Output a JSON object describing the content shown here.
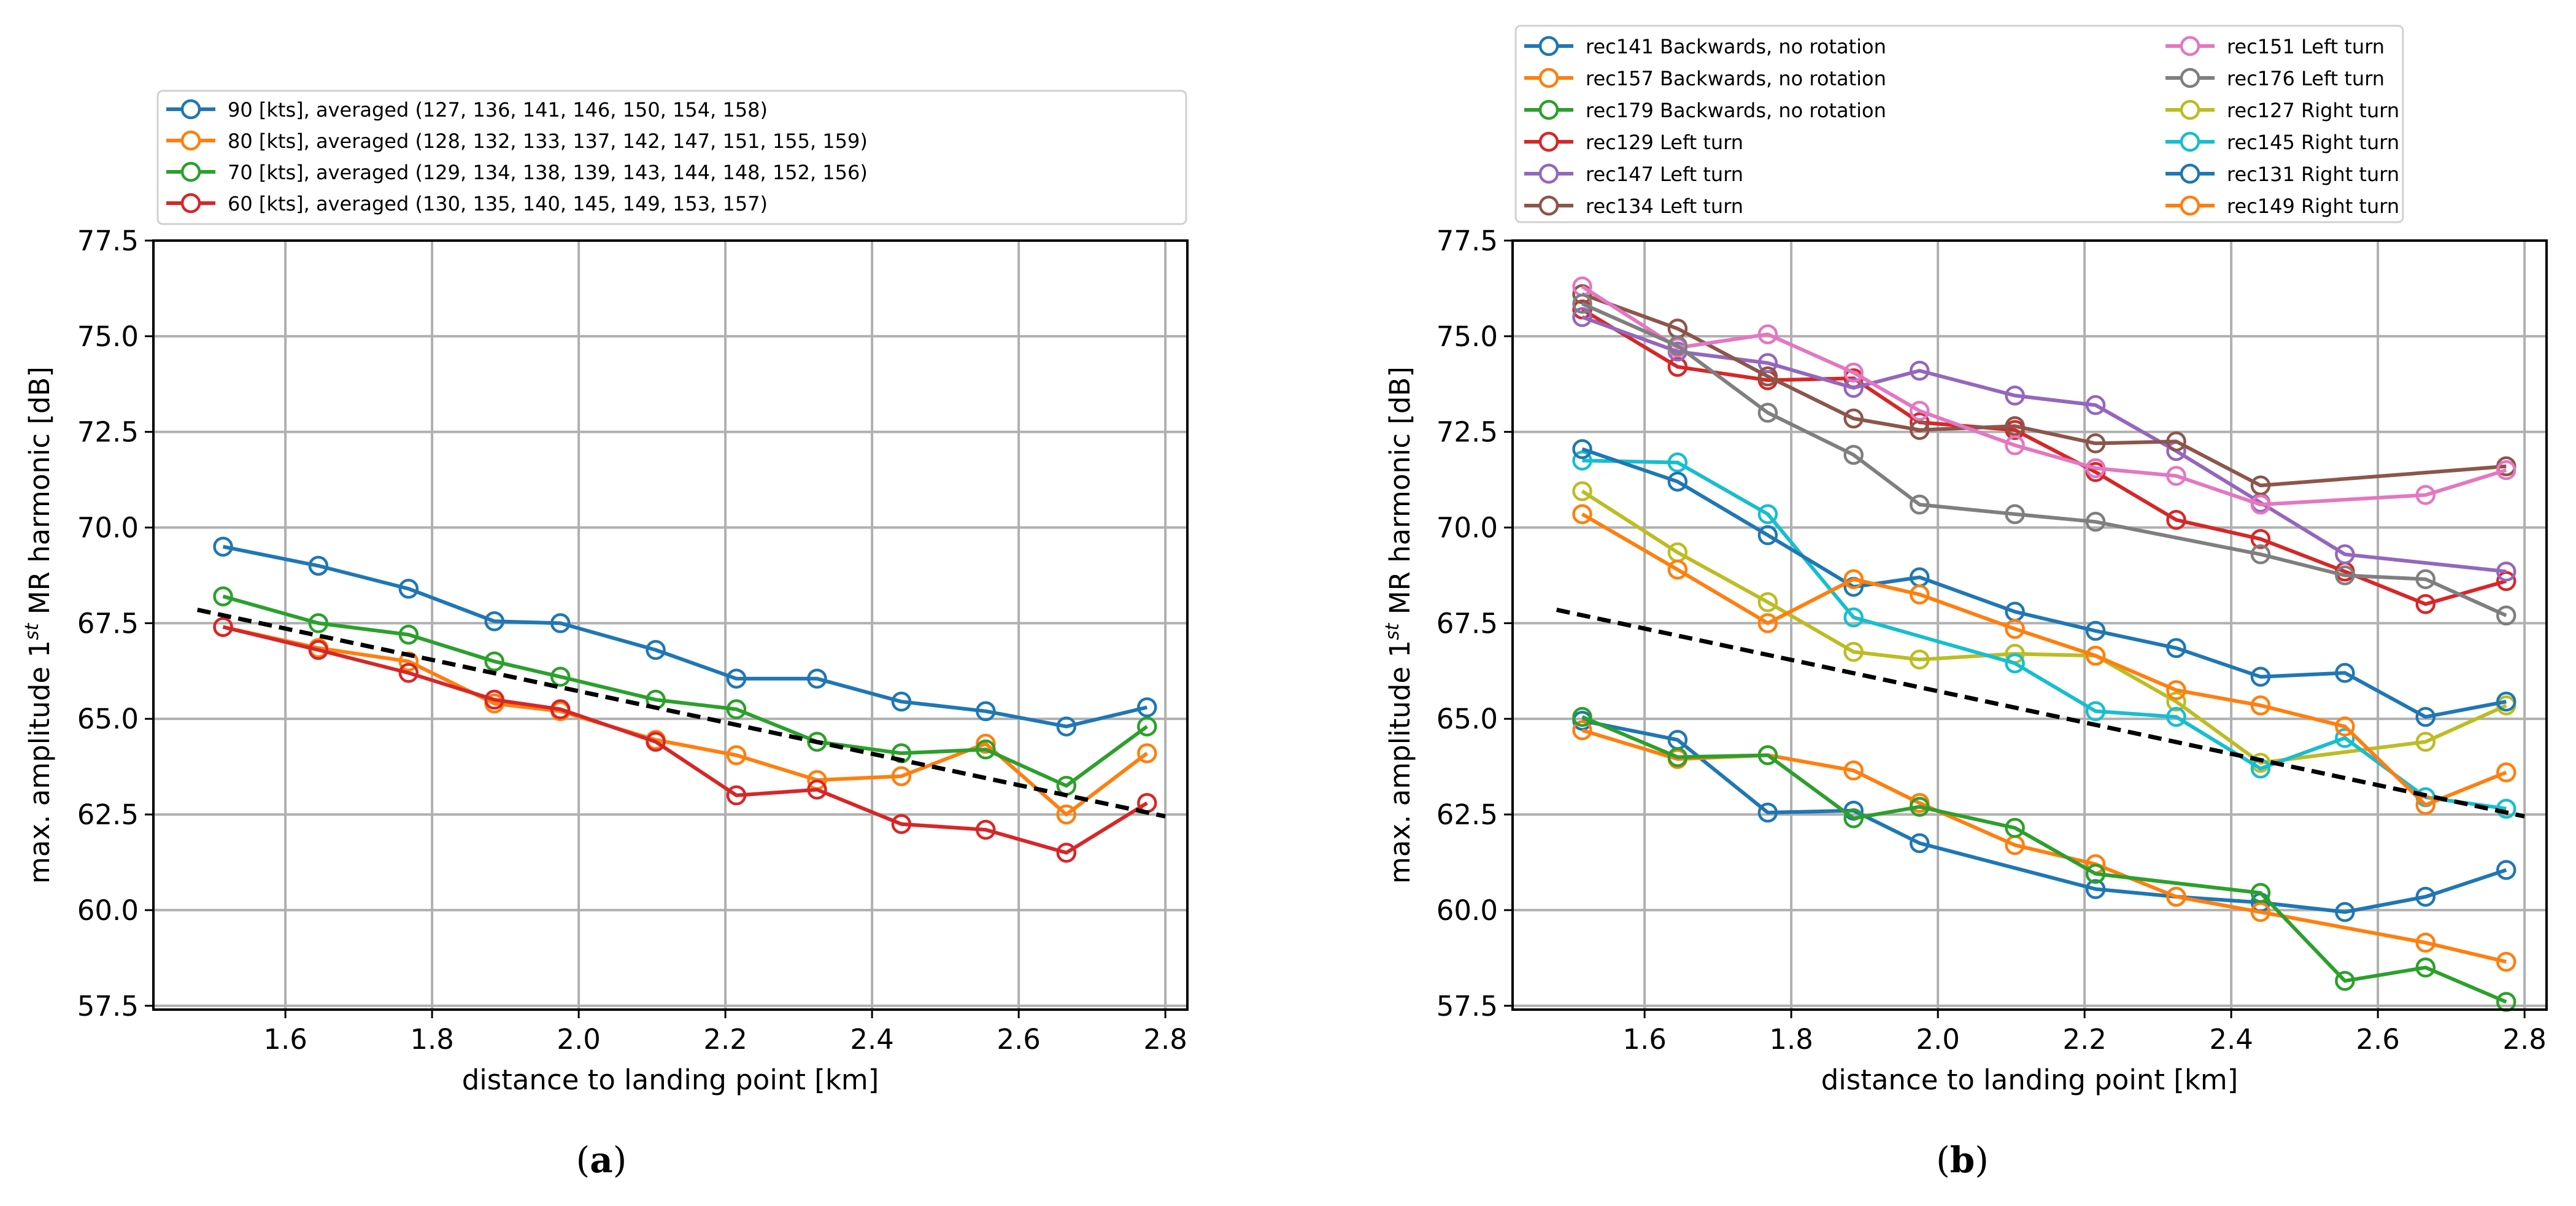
{
  "chart_data": [
    {
      "type": "line",
      "panel": "a",
      "caption_letter": "a",
      "xlabel": "distance to landing point [km]",
      "ylabel": {
        "prefix": "max. amplitude 1",
        "sup": "st",
        "suffix": " MR harmonic [dB]"
      },
      "xlim": [
        1.42,
        2.83
      ],
      "ylim": [
        57.4,
        77.5
      ],
      "xticks": [
        "1.6",
        "1.8",
        "2.0",
        "2.2",
        "2.4",
        "2.6",
        "2.8"
      ],
      "yticks": [
        "57.5",
        "60.0",
        "62.5",
        "65.0",
        "67.5",
        "70.0",
        "72.5",
        "75.0",
        "77.5"
      ],
      "grid": true,
      "legend_position": "above",
      "x": [
        1.515,
        1.645,
        1.768,
        1.885,
        1.975,
        2.105,
        2.215,
        2.325,
        2.44,
        2.555,
        2.665,
        2.775
      ],
      "series": [
        {
          "name": "90 [kts], averaged (127, 136, 141, 146, 150, 154, 158)",
          "color": "#1f77b4",
          "values": [
            69.5,
            69.0,
            68.4,
            67.55,
            67.5,
            66.8,
            66.05,
            66.05,
            65.45,
            65.2,
            64.8,
            65.3
          ]
        },
        {
          "name": "80 [kts], averaged (128, 132, 133, 137, 142, 147, 151, 155, 159)",
          "color": "#ff7f0e",
          "values": [
            67.4,
            66.85,
            66.5,
            65.4,
            65.2,
            64.45,
            64.05,
            63.4,
            63.5,
            64.35,
            62.5,
            64.1
          ]
        },
        {
          "name": "70 [kts], averaged (129, 134, 138, 139, 143, 144, 148, 152, 156)",
          "color": "#2ca02c",
          "values": [
            68.2,
            67.5,
            67.2,
            66.5,
            66.1,
            65.5,
            65.25,
            64.4,
            64.1,
            64.2,
            63.25,
            64.8
          ]
        },
        {
          "name": "60 [kts], averaged (130, 135, 140, 145, 149, 153, 157)",
          "color": "#d62728",
          "values": [
            67.4,
            66.8,
            66.2,
            65.5,
            65.25,
            64.4,
            63.0,
            63.15,
            62.25,
            62.1,
            61.5,
            62.8
          ]
        }
      ],
      "trend_line": {
        "x": [
          1.48,
          2.8
        ],
        "values": [
          67.85,
          62.45
        ],
        "color": "#000000",
        "style": "dashed"
      }
    },
    {
      "type": "line",
      "panel": "b",
      "caption_letter": "b",
      "xlabel": "distance to landing point [km]",
      "ylabel": {
        "prefix": "max. amplitude 1",
        "sup": "st",
        "suffix": " MR harmonic [dB]"
      },
      "xlim": [
        1.42,
        2.83
      ],
      "ylim": [
        57.4,
        77.5
      ],
      "xticks": [
        "1.6",
        "1.8",
        "2.0",
        "2.2",
        "2.4",
        "2.6",
        "2.8"
      ],
      "yticks": [
        "57.5",
        "60.0",
        "62.5",
        "65.0",
        "67.5",
        "70.0",
        "72.5",
        "75.0",
        "77.5"
      ],
      "grid": true,
      "legend_position": "above",
      "legend_columns": 2,
      "x": [
        1.515,
        1.645,
        1.768,
        1.885,
        1.975,
        2.105,
        2.215,
        2.325,
        2.44,
        2.555,
        2.665,
        2.775
      ],
      "series": [
        {
          "name": "rec141 Backwards, no rotation",
          "color": "#1f77b4",
          "values": [
            64.95,
            64.45,
            62.55,
            62.6,
            61.75,
            null,
            60.55,
            60.35,
            60.2,
            59.95,
            60.35,
            61.05
          ]
        },
        {
          "name": "rec157 Backwards, no rotation",
          "color": "#ff7f0e",
          "values": [
            64.7,
            63.95,
            64.05,
            63.65,
            62.8,
            61.7,
            61.2,
            60.35,
            59.95,
            null,
            59.15,
            58.65
          ]
        },
        {
          "name": "rec179 Backwards, no rotation",
          "color": "#2ca02c",
          "values": [
            65.05,
            64.0,
            64.05,
            62.4,
            62.7,
            62.15,
            60.95,
            null,
            60.45,
            58.15,
            58.5,
            57.6
          ]
        },
        {
          "name": "rec129 Left turn",
          "color": "#d62728",
          "values": [
            75.7,
            74.2,
            73.85,
            73.9,
            72.75,
            72.55,
            71.45,
            70.2,
            69.7,
            68.85,
            68.0,
            68.6
          ]
        },
        {
          "name": "rec147 Left turn",
          "color": "#9467bd",
          "values": [
            75.5,
            74.6,
            74.3,
            73.65,
            74.1,
            73.45,
            73.2,
            72.0,
            70.65,
            69.3,
            null,
            68.85
          ]
        },
        {
          "name": "rec134 Left turn",
          "color": "#8c564b",
          "values": [
            76.1,
            75.2,
            73.95,
            72.85,
            72.55,
            72.65,
            72.2,
            72.25,
            71.1,
            null,
            null,
            71.6
          ]
        },
        {
          "name": "rec151 Left turn",
          "color": "#e377c2",
          "values": [
            76.3,
            74.7,
            75.05,
            74.05,
            73.05,
            72.15,
            71.55,
            71.35,
            70.6,
            null,
            70.85,
            71.5
          ]
        },
        {
          "name": "rec176 Left turn",
          "color": "#7f7f7f",
          "values": [
            75.85,
            74.75,
            73.0,
            71.9,
            70.6,
            70.35,
            70.15,
            null,
            69.3,
            68.75,
            68.65,
            67.7
          ]
        },
        {
          "name": "rec127 Right turn",
          "color": "#bcbd22",
          "values": [
            70.95,
            69.35,
            68.05,
            66.75,
            66.55,
            66.7,
            66.65,
            65.45,
            63.85,
            null,
            64.4,
            65.35
          ]
        },
        {
          "name": "rec145 Right turn",
          "color": "#17becf",
          "values": [
            71.75,
            71.7,
            70.35,
            67.65,
            null,
            66.45,
            65.2,
            65.05,
            63.7,
            64.5,
            62.95,
            62.65
          ]
        },
        {
          "name": "rec131 Right turn",
          "color": "#1f77b4",
          "values": [
            72.05,
            71.2,
            69.8,
            68.45,
            68.7,
            67.8,
            67.3,
            66.85,
            66.1,
            66.2,
            65.05,
            65.45
          ]
        },
        {
          "name": "rec149 Right turn",
          "color": "#ff7f0e",
          "values": [
            70.35,
            68.9,
            67.5,
            68.65,
            68.25,
            67.35,
            66.65,
            65.75,
            65.35,
            64.8,
            62.75,
            63.6
          ]
        }
      ],
      "trend_line": {
        "x": [
          1.48,
          2.8
        ],
        "values": [
          67.85,
          62.45
        ],
        "color": "#000000",
        "style": "dashed"
      }
    }
  ]
}
